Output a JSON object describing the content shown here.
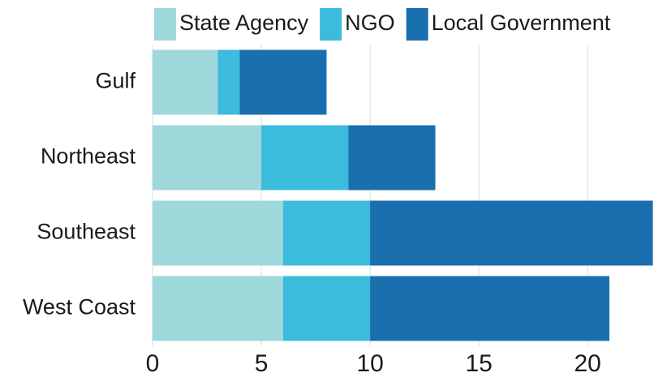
{
  "chart_data": {
    "type": "stacked_barh",
    "categories": [
      "Gulf",
      "Northeast",
      "Southeast",
      "West Coast"
    ],
    "series": [
      {
        "name": "State Agency",
        "color": "#9ed8db",
        "values": [
          3,
          5,
          6,
          6
        ]
      },
      {
        "name": "NGO",
        "color": "#3bbcdc",
        "values": [
          1,
          4,
          4,
          4
        ]
      },
      {
        "name": "Local Government",
        "color": "#1a6faf",
        "values": [
          4,
          4,
          13,
          11
        ]
      }
    ],
    "xlim": [
      0,
      23.5
    ],
    "xticks": [
      0,
      5,
      10,
      15,
      20
    ],
    "grid": true,
    "legend": "top"
  }
}
